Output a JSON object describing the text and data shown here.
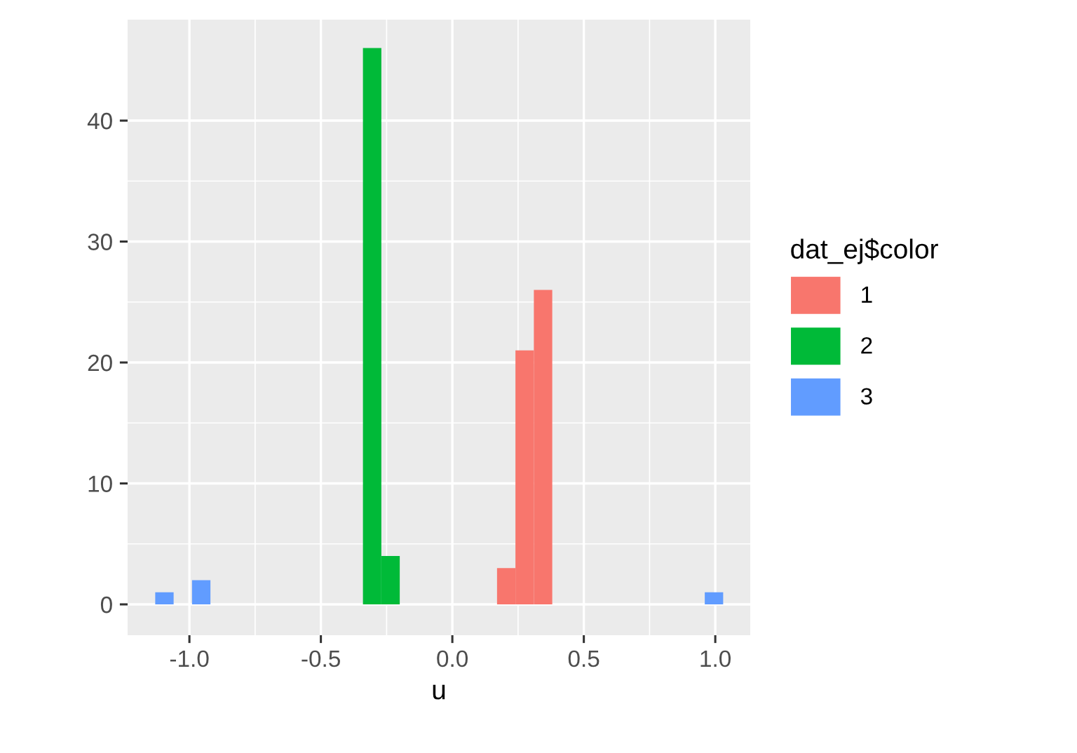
{
  "chart_data": {
    "type": "histogram",
    "xlabel": "u",
    "legend_title": "dat_ej$color",
    "bins": [
      -1.13,
      -1.06,
      -0.99,
      -0.92,
      -0.34,
      -0.27,
      -0.2,
      0.17,
      0.24,
      0.31,
      0.38,
      0.96,
      1.03
    ],
    "series": [
      {
        "name": "1",
        "color": "#f8766d",
        "values": [
          0,
          0,
          0,
          0,
          0,
          0,
          0,
          3,
          21,
          26,
          0,
          0
        ]
      },
      {
        "name": "2",
        "color": "#00ba38",
        "values": [
          0,
          0,
          0,
          0,
          46,
          4,
          0,
          0,
          0,
          0,
          0,
          0
        ]
      },
      {
        "name": "3",
        "color": "#619cff",
        "values": [
          1,
          0,
          2,
          0,
          0,
          0,
          0,
          0,
          0,
          0,
          0,
          1
        ]
      }
    ],
    "xlim": [
      -1.235,
      1.133
    ],
    "ylim": [
      -2.55,
      48.35
    ],
    "xticks": [
      {
        "value": -1.0,
        "label": "-1.0"
      },
      {
        "value": -0.5,
        "label": "-0.5"
      },
      {
        "value": 0.0,
        "label": "0.0"
      },
      {
        "value": 0.5,
        "label": "0.5"
      },
      {
        "value": 1.0,
        "label": "1.0"
      }
    ],
    "yticks": [
      0,
      10,
      20,
      30,
      40
    ],
    "grid": true,
    "legend": "right"
  }
}
